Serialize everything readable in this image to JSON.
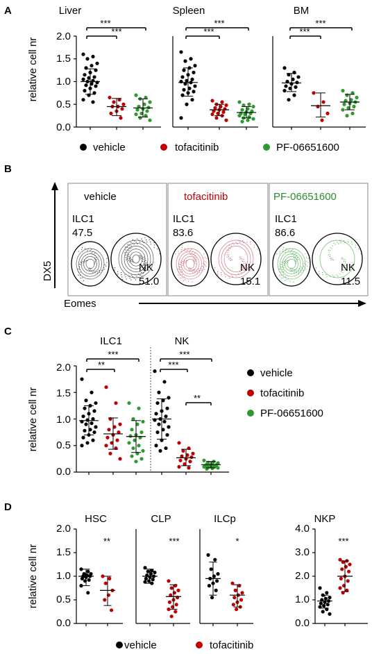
{
  "colors": {
    "vehicle": "#000000",
    "tofacitinib": "#c00000",
    "pf": "#2e9a2e",
    "tof_text": "#c00000",
    "pf_text": "#2e8b2e"
  },
  "legend": {
    "vehicle": "vehicle",
    "tofacitinib": "tofacitinib",
    "pf": "PF-06651600"
  },
  "panelA": {
    "letter": "A",
    "ylabel": "relative cell nr",
    "yticks": [
      "0.0",
      "0.5",
      "1.0",
      "1.5",
      "2.0"
    ],
    "charts": [
      {
        "title": "Liver",
        "sig1": "***",
        "sig2": "***"
      },
      {
        "title": "Spleen",
        "sig1": "***",
        "sig2": "***"
      },
      {
        "title": "BM",
        "sig1": "***",
        "sig2": "***"
      }
    ]
  },
  "panelB": {
    "letter": "B",
    "ylabel": "DX5",
    "xlabel": "Eomes",
    "plots": [
      {
        "title": "vehicle",
        "ilc1_label": "ILC1",
        "ilc1_value": "47.5",
        "nk_label": "NK",
        "nk_value": "51.0"
      },
      {
        "title": "tofacitinib",
        "ilc1_label": "ILC1",
        "ilc1_value": "83.6",
        "nk_label": "NK",
        "nk_value": "15.1"
      },
      {
        "title": "PF-06651600",
        "ilc1_label": "ILC1",
        "ilc1_value": "86.6",
        "nk_label": "NK",
        "nk_value": "11.5"
      }
    ]
  },
  "panelC": {
    "letter": "C",
    "ylabel": "relative cell nr",
    "yticks": [
      "0.0",
      "0.5",
      "1.0",
      "1.5",
      "2.0"
    ],
    "groups": [
      "ILC1",
      "NK"
    ],
    "sig": {
      "ilc1_a": "**",
      "ilc1_b": "***",
      "nk_a": "***",
      "nk_b": "***",
      "nk_c": "**"
    }
  },
  "panelD": {
    "letter": "D",
    "ylabel": "relative cell nr",
    "yticks": [
      "0.0",
      "0.5",
      "1.0",
      "1.5",
      "2.0"
    ],
    "yticks_nkp": [
      "0.0",
      "1.0",
      "2.0",
      "3.0",
      "4.0"
    ],
    "charts": [
      {
        "title": "HSC",
        "sig": "**"
      },
      {
        "title": "CLP",
        "sig": "***"
      },
      {
        "title": "ILCp",
        "sig": "*"
      },
      {
        "title": "NKP",
        "sig": "***"
      }
    ]
  },
  "chart_data": [
    {
      "type": "scatter",
      "panel": "A",
      "title": "Liver",
      "ylabel": "relative cell nr",
      "ylim": [
        0,
        2
      ],
      "series": [
        {
          "name": "vehicle",
          "mean": 1.0,
          "sd_low": 0.72,
          "sd_high": 1.28,
          "values": [
            1.6,
            1.55,
            1.5,
            1.4,
            1.35,
            1.3,
            1.25,
            1.2,
            1.15,
            1.1,
            1.08,
            1.05,
            1.02,
            1.0,
            0.98,
            0.95,
            0.92,
            0.9,
            0.85,
            0.8,
            0.75,
            0.7,
            0.6,
            0.55
          ]
        },
        {
          "name": "tofacitinib",
          "mean": 0.45,
          "sd_low": 0.25,
          "sd_high": 0.63,
          "values": [
            0.65,
            0.6,
            0.55,
            0.5,
            0.45,
            0.45,
            0.4,
            0.35,
            0.3,
            0.2
          ]
        },
        {
          "name": "PF-06651600",
          "mean": 0.42,
          "sd_low": 0.22,
          "sd_high": 0.62,
          "values": [
            0.7,
            0.65,
            0.62,
            0.55,
            0.5,
            0.45,
            0.43,
            0.4,
            0.38,
            0.35,
            0.3,
            0.28,
            0.25,
            0.2,
            0.15
          ]
        }
      ]
    },
    {
      "type": "scatter",
      "panel": "A",
      "title": "Spleen",
      "ylim": [
        0,
        2
      ],
      "series": [
        {
          "name": "vehicle",
          "mean": 0.98,
          "sd_low": 0.68,
          "sd_high": 1.3,
          "values": [
            1.65,
            1.5,
            1.45,
            1.35,
            1.3,
            1.25,
            1.2,
            1.15,
            1.1,
            1.05,
            1.02,
            1.0,
            0.98,
            0.95,
            0.9,
            0.85,
            0.82,
            0.78,
            0.75,
            0.7,
            0.6,
            0.5,
            0.2
          ]
        },
        {
          "name": "tofacitinib",
          "mean": 0.38,
          "sd_low": 0.25,
          "sd_high": 0.5,
          "values": [
            0.58,
            0.55,
            0.5,
            0.48,
            0.45,
            0.42,
            0.4,
            0.38,
            0.35,
            0.33,
            0.3,
            0.28,
            0.25,
            0.2,
            0.15
          ]
        },
        {
          "name": "PF-06651600",
          "mean": 0.32,
          "sd_low": 0.2,
          "sd_high": 0.45,
          "values": [
            0.55,
            0.5,
            0.48,
            0.45,
            0.4,
            0.38,
            0.35,
            0.33,
            0.3,
            0.3,
            0.28,
            0.25,
            0.22,
            0.2,
            0.18,
            0.15,
            0.12
          ]
        }
      ]
    },
    {
      "type": "scatter",
      "panel": "A",
      "title": "BM",
      "ylim": [
        0,
        2
      ],
      "series": [
        {
          "name": "vehicle",
          "mean": 0.97,
          "sd_low": 0.78,
          "sd_high": 1.18,
          "values": [
            1.3,
            1.2,
            1.15,
            1.1,
            1.05,
            1.0,
            0.98,
            0.95,
            0.9,
            0.88,
            0.85,
            0.8,
            0.7,
            0.6
          ]
        },
        {
          "name": "tofacitinib",
          "mean": 0.47,
          "sd_low": 0.22,
          "sd_high": 0.75,
          "values": [
            0.75,
            0.55,
            0.45,
            0.3,
            0.15
          ]
        },
        {
          "name": "PF-06651600",
          "mean": 0.55,
          "sd_low": 0.38,
          "sd_high": 0.72,
          "values": [
            0.8,
            0.75,
            0.7,
            0.65,
            0.6,
            0.58,
            0.55,
            0.52,
            0.5,
            0.45,
            0.42,
            0.38,
            0.3,
            0.25
          ]
        }
      ]
    },
    {
      "type": "scatter",
      "panel": "C",
      "title": "ILC1",
      "ylabel": "relative cell nr",
      "ylim": [
        0,
        2
      ],
      "series": [
        {
          "name": "vehicle",
          "mean": 0.97,
          "sd_low": 0.7,
          "sd_high": 1.25,
          "values": [
            1.75,
            1.5,
            1.35,
            1.3,
            1.25,
            1.2,
            1.15,
            1.1,
            1.05,
            1.0,
            0.98,
            0.95,
            0.92,
            0.9,
            0.85,
            0.8,
            0.78,
            0.75,
            0.7,
            0.65,
            0.6,
            0.55,
            0.5
          ]
        },
        {
          "name": "tofacitinib",
          "mean": 0.72,
          "sd_low": 0.43,
          "sd_high": 1.02,
          "values": [
            1.6,
            1.3,
            1.0,
            0.9,
            0.85,
            0.8,
            0.75,
            0.7,
            0.65,
            0.6,
            0.55,
            0.5,
            0.45,
            0.35,
            0.25
          ]
        },
        {
          "name": "PF-06651600",
          "mean": 0.67,
          "sd_low": 0.37,
          "sd_high": 0.97,
          "values": [
            1.3,
            1.2,
            1.0,
            0.95,
            0.9,
            0.8,
            0.75,
            0.7,
            0.68,
            0.65,
            0.6,
            0.55,
            0.5,
            0.45,
            0.4,
            0.35,
            0.3,
            0.25,
            0.2
          ]
        }
      ]
    },
    {
      "type": "scatter",
      "panel": "C",
      "title": "NK",
      "ylim": [
        0,
        2
      ],
      "series": [
        {
          "name": "vehicle",
          "mean": 1.0,
          "sd_low": 0.62,
          "sd_high": 1.38,
          "values": [
            1.9,
            1.7,
            1.5,
            1.4,
            1.35,
            1.3,
            1.2,
            1.15,
            1.1,
            1.05,
            1.0,
            0.98,
            0.95,
            0.9,
            0.85,
            0.8,
            0.75,
            0.7,
            0.6,
            0.5,
            0.45,
            0.4
          ]
        },
        {
          "name": "tofacitinib",
          "mean": 0.27,
          "sd_low": 0.12,
          "sd_high": 0.43,
          "values": [
            0.55,
            0.45,
            0.4,
            0.35,
            0.32,
            0.3,
            0.28,
            0.25,
            0.22,
            0.2,
            0.15,
            0.1,
            0.08
          ]
        },
        {
          "name": "PF-06651600",
          "mean": 0.14,
          "sd_low": 0.08,
          "sd_high": 0.2,
          "values": [
            0.22,
            0.2,
            0.18,
            0.17,
            0.16,
            0.15,
            0.14,
            0.13,
            0.12,
            0.12,
            0.11,
            0.1,
            0.1,
            0.09,
            0.08,
            0.07,
            0.06
          ]
        }
      ]
    },
    {
      "type": "scatter",
      "panel": "D",
      "title": "HSC",
      "ylabel": "relative cell nr",
      "ylim": [
        0,
        2
      ],
      "series": [
        {
          "name": "vehicle",
          "mean": 1.0,
          "sd_low": 0.8,
          "sd_high": 1.15,
          "values": [
            1.15,
            1.1,
            1.05,
            1.05,
            1.02,
            1.0,
            1.0,
            0.98,
            0.95,
            0.92,
            0.9,
            0.8,
            0.65
          ]
        },
        {
          "name": "tofacitinib",
          "mean": 0.7,
          "sd_low": 0.38,
          "sd_high": 1.0,
          "values": [
            1.0,
            0.95,
            0.85,
            0.7,
            0.6,
            0.5,
            0.28
          ]
        }
      ]
    },
    {
      "type": "scatter",
      "panel": "D",
      "title": "CLP",
      "ylim": [
        0,
        2
      ],
      "series": [
        {
          "name": "vehicle",
          "mean": 1.0,
          "sd_low": 0.85,
          "sd_high": 1.15,
          "values": [
            1.18,
            1.12,
            1.1,
            1.08,
            1.05,
            1.02,
            1.0,
            0.98,
            0.95,
            0.93,
            0.9,
            0.88,
            0.85
          ]
        },
        {
          "name": "tofacitinib",
          "mean": 0.57,
          "sd_low": 0.3,
          "sd_high": 0.82,
          "values": [
            0.9,
            0.8,
            0.75,
            0.7,
            0.65,
            0.6,
            0.55,
            0.5,
            0.45,
            0.4,
            0.35,
            0.3,
            0.25,
            0.15
          ]
        }
      ]
    },
    {
      "type": "scatter",
      "panel": "D",
      "title": "ILCp",
      "ylim": [
        0,
        2
      ],
      "series": [
        {
          "name": "vehicle",
          "mean": 0.95,
          "sd_low": 0.6,
          "sd_high": 1.3,
          "values": [
            1.45,
            1.35,
            1.15,
            1.05,
            1.0,
            0.95,
            0.9,
            0.85,
            0.8,
            0.7,
            0.55
          ]
        },
        {
          "name": "tofacitinib",
          "mean": 0.6,
          "sd_low": 0.35,
          "sd_high": 0.82,
          "values": [
            0.85,
            0.8,
            0.7,
            0.65,
            0.6,
            0.55,
            0.5,
            0.45,
            0.4,
            0.35,
            0.3
          ]
        }
      ]
    },
    {
      "type": "scatter",
      "panel": "D",
      "title": "NKP",
      "ylim": [
        0,
        4
      ],
      "series": [
        {
          "name": "vehicle",
          "mean": 0.95,
          "sd_low": 0.65,
          "sd_high": 1.2,
          "values": [
            1.5,
            1.3,
            1.2,
            1.1,
            1.05,
            1.0,
            0.95,
            0.9,
            0.85,
            0.8,
            0.75,
            0.7,
            0.6,
            0.5,
            0.4
          ]
        },
        {
          "name": "tofacitinib",
          "mean": 2.0,
          "sd_low": 1.35,
          "sd_high": 2.65,
          "values": [
            2.7,
            2.65,
            2.6,
            2.5,
            2.4,
            2.3,
            2.2,
            2.0,
            1.9,
            1.8,
            1.6,
            1.5,
            1.4,
            1.3
          ]
        }
      ]
    }
  ]
}
